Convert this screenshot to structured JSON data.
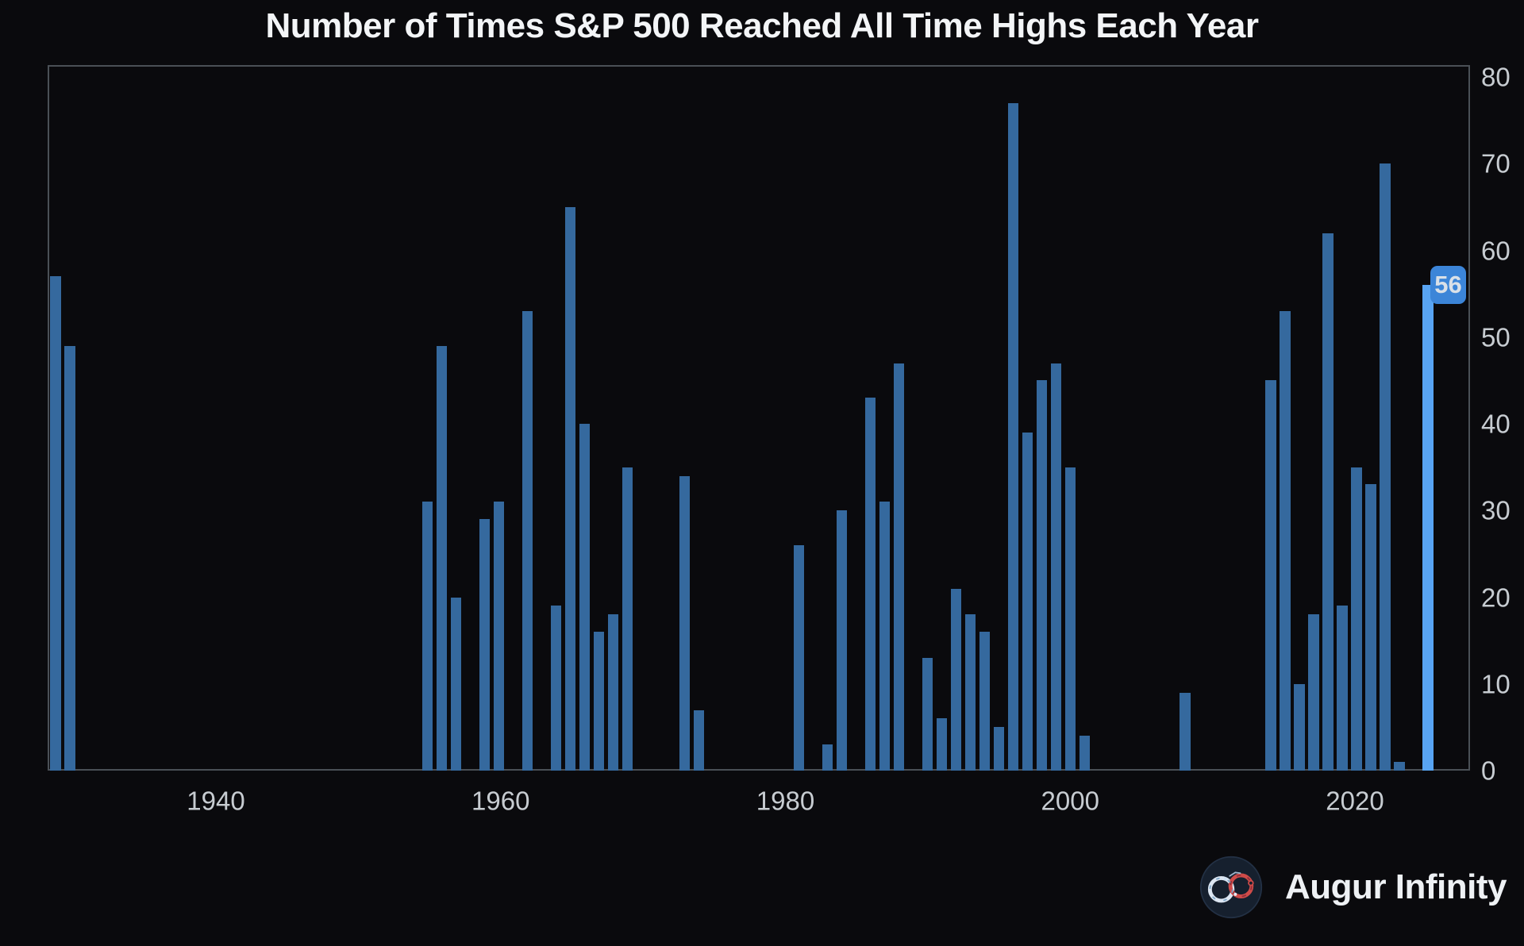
{
  "title": "Number of Times S&P 500 Reached All Time Highs Each Year",
  "branding": {
    "name": "Augur Infinity"
  },
  "annotation": {
    "label": "56"
  },
  "colors": {
    "background": "#0a0a0d",
    "bar": "#35699e",
    "bar_highlight": "#58a4f2",
    "badge_background": "#3c85d8",
    "badge_text": "#d9e0e8",
    "plot_border": "#4a5056",
    "tick_text": "#c7ccd1",
    "title_text": "#f3f5f7"
  },
  "chart_data": {
    "type": "bar",
    "title": "Number of Times S&P 500 Reached All Time Highs Each Year",
    "xlabel": "",
    "ylabel": "",
    "grid": false,
    "legend": false,
    "y_axis_side": "right",
    "ylim": [
      0,
      81.4
    ],
    "xlim": [
      1927.4,
      2026.6
    ],
    "x_ticks": [
      1940,
      1960,
      1980,
      2000,
      2020
    ],
    "y_ticks": [
      0,
      10,
      20,
      30,
      40,
      50,
      60,
      70,
      80
    ],
    "highlighted_year": 2024,
    "annotation": {
      "text": "56",
      "year": 2024,
      "value": 56
    },
    "points": [
      {
        "year": 1928,
        "value": 57
      },
      {
        "year": 1929,
        "value": 49
      },
      {
        "year": 1954,
        "value": 31
      },
      {
        "year": 1955,
        "value": 49
      },
      {
        "year": 1956,
        "value": 20
      },
      {
        "year": 1958,
        "value": 29
      },
      {
        "year": 1959,
        "value": 31
      },
      {
        "year": 1961,
        "value": 53
      },
      {
        "year": 1963,
        "value": 19
      },
      {
        "year": 1964,
        "value": 65
      },
      {
        "year": 1965,
        "value": 40
      },
      {
        "year": 1966,
        "value": 16
      },
      {
        "year": 1967,
        "value": 18
      },
      {
        "year": 1968,
        "value": 35
      },
      {
        "year": 1972,
        "value": 34
      },
      {
        "year": 1973,
        "value": 7
      },
      {
        "year": 1980,
        "value": 26
      },
      {
        "year": 1982,
        "value": 3
      },
      {
        "year": 1983,
        "value": 30
      },
      {
        "year": 1985,
        "value": 43
      },
      {
        "year": 1986,
        "value": 31
      },
      {
        "year": 1987,
        "value": 47
      },
      {
        "year": 1989,
        "value": 13
      },
      {
        "year": 1990,
        "value": 6
      },
      {
        "year": 1991,
        "value": 21
      },
      {
        "year": 1992,
        "value": 18
      },
      {
        "year": 1993,
        "value": 16
      },
      {
        "year": 1994,
        "value": 5
      },
      {
        "year": 1995,
        "value": 77
      },
      {
        "year": 1996,
        "value": 39
      },
      {
        "year": 1997,
        "value": 45
      },
      {
        "year": 1998,
        "value": 47
      },
      {
        "year": 1999,
        "value": 35
      },
      {
        "year": 2000,
        "value": 4
      },
      {
        "year": 2007,
        "value": 9
      },
      {
        "year": 2013,
        "value": 45
      },
      {
        "year": 2014,
        "value": 53
      },
      {
        "year": 2015,
        "value": 10
      },
      {
        "year": 2016,
        "value": 18
      },
      {
        "year": 2017,
        "value": 62
      },
      {
        "year": 2018,
        "value": 19
      },
      {
        "year": 2019,
        "value": 35
      },
      {
        "year": 2020,
        "value": 33
      },
      {
        "year": 2021,
        "value": 70
      },
      {
        "year": 2022,
        "value": 1
      },
      {
        "year": 2024,
        "value": 56
      }
    ]
  }
}
